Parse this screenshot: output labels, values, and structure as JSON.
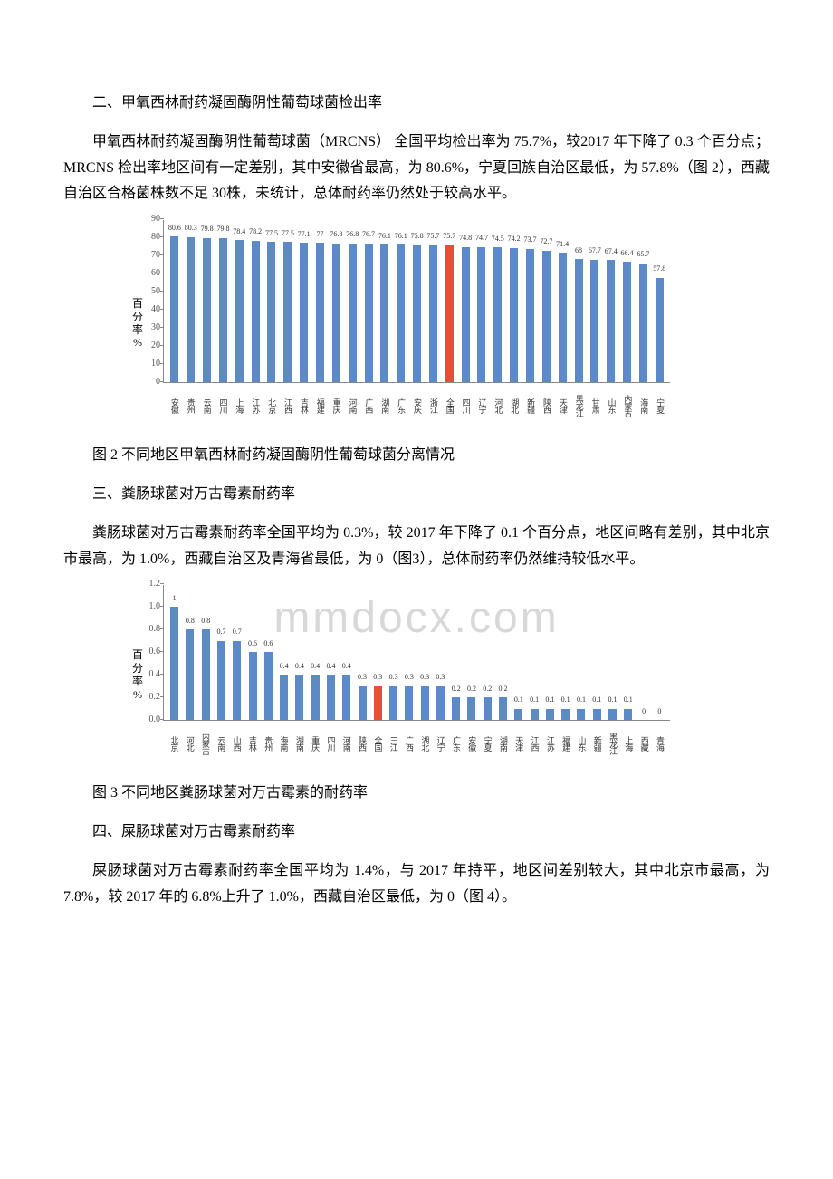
{
  "section2": {
    "heading": "二、甲氧西林耐药凝固酶阴性葡萄球菌检出率",
    "para": "甲氧西林耐药凝固酶阴性葡萄球菌（MRCNS） 全国平均检出率为 75.7%，较2017 年下降了 0.3 个百分点；MRCNS 检出率地区间有一定差别，其中安徽省最高，为 80.6%，宁夏回族自治区最低，为 57.8%（图 2），西藏自治区合格菌株数不足 30株，未统计，总体耐药率仍然处于较高水平。",
    "caption": "图 2 不同地区甲氧西林耐药凝固酶阴性葡萄球菌分离情况"
  },
  "section3": {
    "heading": "三、粪肠球菌对万古霉素耐药率",
    "para": "粪肠球菌对万古霉素耐药率全国平均为 0.3%，较 2017 年下降了 0.1 个百分点，地区间略有差别，其中北京市最高，为 1.0%，西藏自治区及青海省最低，为 0（图3），总体耐药率仍然维持较低水平。",
    "caption": "图 3 不同地区粪肠球菌对万古霉素的耐药率"
  },
  "section4": {
    "heading": "四、屎肠球菌对万古霉素耐药率",
    "para": "屎肠球菌对万古霉素耐药率全国平均为 1.4%，与 2017 年持平，地区间差别较大，其中北京市最高，为 7.8%，较 2017 年的 6.8%上升了 1.0%，西藏自治区最低，为 0（图 4）。"
  },
  "watermark": "mmdocx.com",
  "chart2": {
    "type": "bar",
    "ylabel": "百分率%",
    "ylim": [
      0,
      90
    ],
    "ytick_step": 10,
    "bar_color": "#5b8ac6",
    "highlight_color": "#e74c3c",
    "axis_color": "#888888",
    "text_color": "#333333",
    "categories": [
      "安徽",
      "贵州",
      "云南",
      "四川",
      "上海",
      "江苏",
      "北京",
      "江西",
      "吉林",
      "福建",
      "重庆",
      "河南",
      "广西",
      "湖南",
      "广东",
      "安庆",
      "浙江",
      "全国",
      "四川",
      "辽宁",
      "河北",
      "湖北",
      "新疆",
      "陕西",
      "天津",
      "黑龙江",
      "甘肃",
      "山东",
      "内蒙古",
      "海南",
      "宁夏"
    ],
    "values": [
      80.6,
      80.3,
      79.8,
      79.8,
      78.4,
      78.2,
      77.5,
      77.5,
      77.1,
      77,
      76.8,
      76.8,
      76.7,
      76.1,
      76.1,
      75.8,
      75.7,
      75.7,
      74.8,
      74.7,
      74.5,
      74.2,
      73.7,
      72.7,
      71.4,
      68,
      67.7,
      67.4,
      66.4,
      65.7,
      57.8
    ],
    "highlight_index": 17
  },
  "chart3": {
    "type": "bar",
    "ylabel": "百分率%",
    "ylim": [
      0,
      1.2
    ],
    "ytick_step": 0.2,
    "bar_color": "#5b8ac6",
    "highlight_color": "#e74c3c",
    "axis_color": "#888888",
    "text_color": "#333333",
    "categories": [
      "北京",
      "河北",
      "内蒙古",
      "云南",
      "山西",
      "吉林",
      "贵州",
      "海南",
      "湖南",
      "重庆",
      "四川",
      "河南",
      "陕西",
      "全国",
      "三江",
      "广西",
      "湖北",
      "辽宁",
      "广东",
      "安徽",
      "宁夏",
      "湖南",
      "天津",
      "江西",
      "江苏",
      "福建",
      "山东",
      "新疆",
      "黑龙江",
      "上海",
      "西藏",
      "青海"
    ],
    "values": [
      1,
      0.8,
      0.8,
      0.7,
      0.7,
      0.6,
      0.6,
      0.4,
      0.4,
      0.4,
      0.4,
      0.4,
      0.3,
      0.3,
      0.3,
      0.3,
      0.3,
      0.3,
      0.2,
      0.2,
      0.2,
      0.2,
      0.1,
      0.1,
      0.1,
      0.1,
      0.1,
      0.1,
      0.1,
      0.1,
      0,
      0
    ],
    "highlight_index": 13
  }
}
